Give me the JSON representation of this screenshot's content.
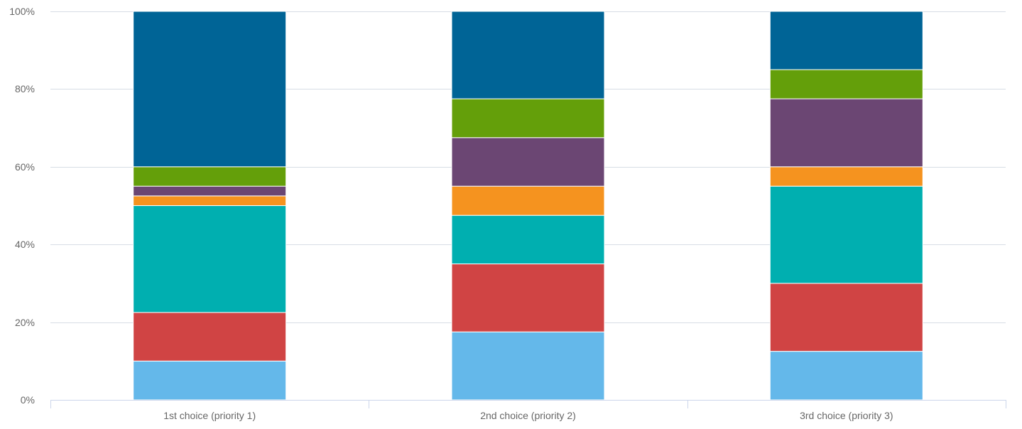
{
  "chart_data": {
    "type": "bar",
    "stacked": true,
    "normalized": true,
    "title": "",
    "xlabel": "",
    "ylabel": "",
    "ylim": [
      0,
      100
    ],
    "y_ticks": [
      "0%",
      "20%",
      "40%",
      "60%",
      "80%",
      "100%"
    ],
    "y_tick_values": [
      0,
      20,
      40,
      60,
      80,
      100
    ],
    "grid": true,
    "categories": [
      "1st choice (priority 1)",
      "2nd choice (priority 2)",
      "3rd choice (priority 3)"
    ],
    "series": [
      {
        "color": "#64b8ea",
        "values": [
          10,
          17.5,
          12.5
        ]
      },
      {
        "color": "#d04444",
        "values": [
          12.5,
          17.5,
          17.5
        ]
      },
      {
        "color": "#00afb0",
        "values": [
          27.5,
          12.5,
          25
        ]
      },
      {
        "color": "#f5931f",
        "values": [
          2.5,
          7.5,
          5
        ]
      },
      {
        "color": "#6b4673",
        "values": [
          2.5,
          12.5,
          17.5
        ]
      },
      {
        "color": "#649f0a",
        "values": [
          5,
          10,
          7.5
        ]
      },
      {
        "color": "#006496",
        "values": [
          40,
          22.5,
          15
        ]
      }
    ]
  }
}
